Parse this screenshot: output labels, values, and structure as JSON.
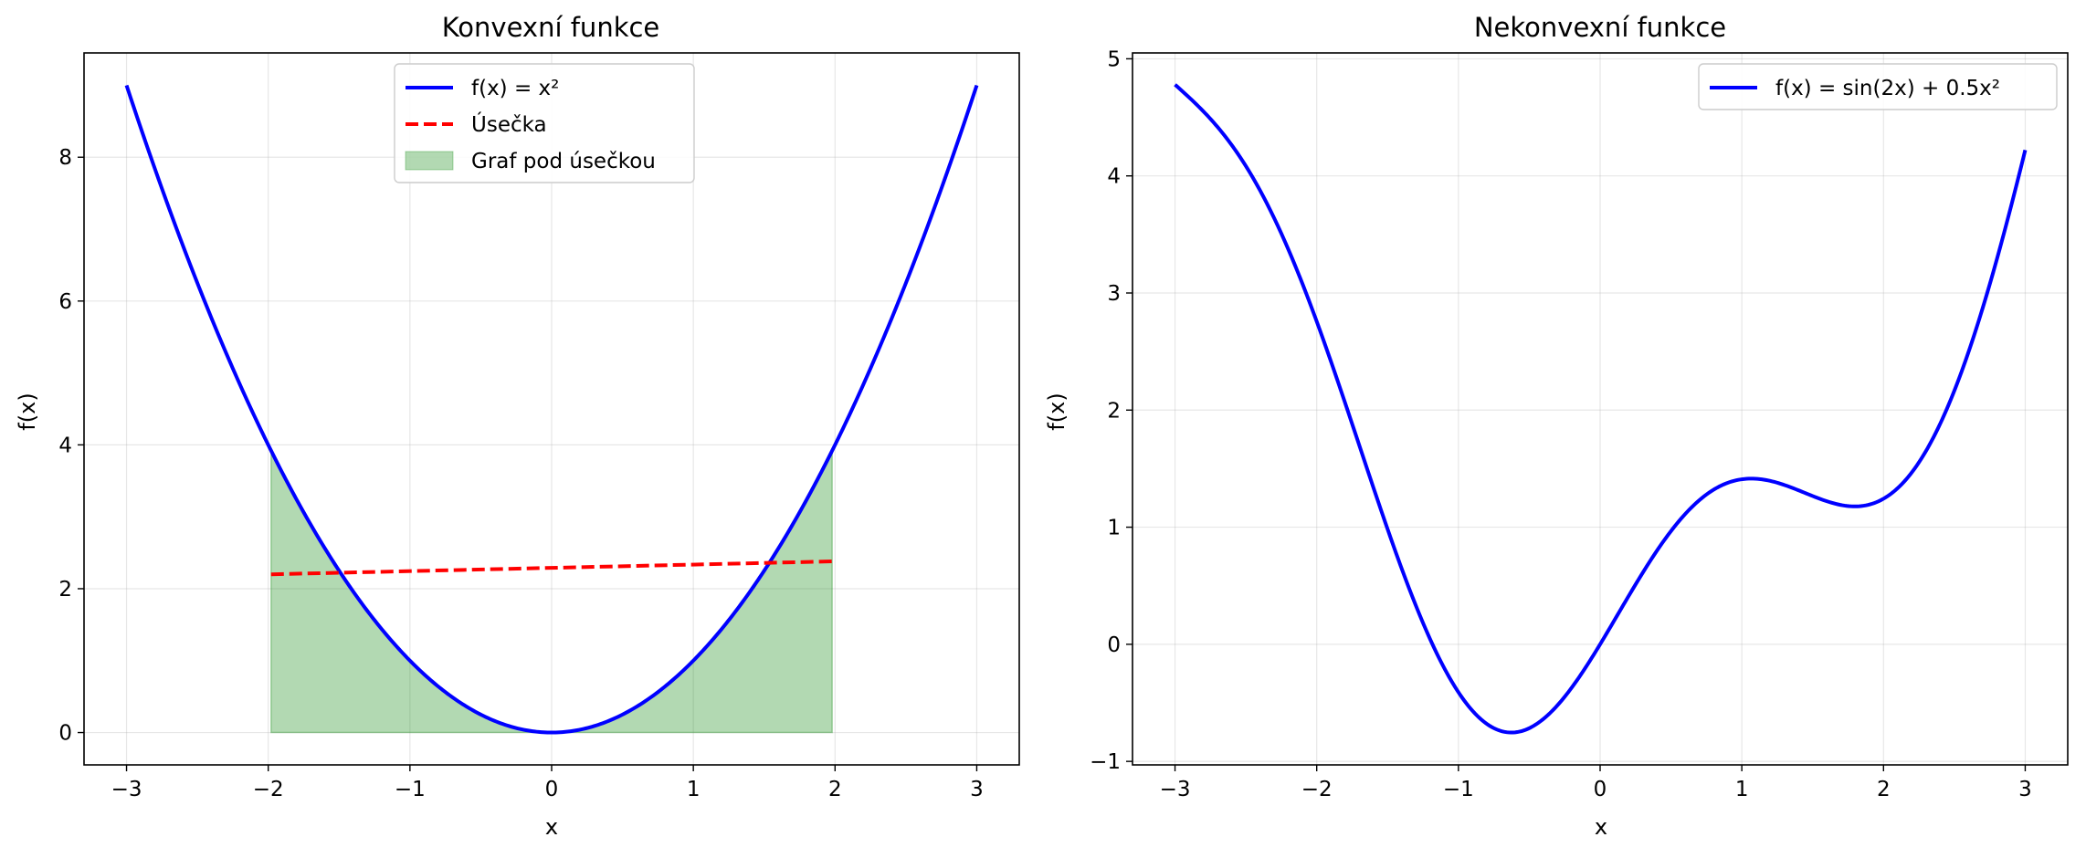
{
  "chart_data": [
    {
      "type": "line",
      "title": "Konvexní funkce",
      "xlabel": "x",
      "ylabel": "f(x)",
      "xlim": [
        -3.3,
        3.3
      ],
      "ylim": [
        -0.45,
        9.45
      ],
      "xticks": [
        -3,
        -2,
        -1,
        0,
        1,
        2,
        3
      ],
      "xtick_labels": [
        "−3",
        "−2",
        "−1",
        "0",
        "1",
        "2",
        "3"
      ],
      "yticks": [
        0,
        2,
        4,
        6,
        8
      ],
      "ytick_labels": [
        "0",
        "2",
        "4",
        "6",
        "8"
      ],
      "grid": true,
      "legend_position": "top-center",
      "series": [
        {
          "name": "f(x) = x²",
          "kind": "line",
          "color": "#0000ff",
          "style": "solid",
          "function": "x^2",
          "x_range": [
            -3,
            3
          ]
        },
        {
          "name": "Úsečka",
          "kind": "line",
          "color": "#ff0000",
          "style": "dashed",
          "x": [
            -1.98,
            1.98
          ],
          "y": [
            2.2,
            2.38
          ]
        },
        {
          "name": "Graf pod úsečkou",
          "kind": "area",
          "color": "#008000",
          "opacity": 0.3,
          "x_range": [
            -1.98,
            1.98
          ],
          "lower": 0,
          "upper_function": "x^2"
        }
      ]
    },
    {
      "type": "line",
      "title": "Nekonvexní funkce",
      "xlabel": "x",
      "ylabel": "f(x)",
      "xlim": [
        -3.3,
        3.3
      ],
      "ylim": [
        -1.03,
        5.05
      ],
      "xticks": [
        -3,
        -2,
        -1,
        0,
        1,
        2,
        3
      ],
      "xtick_labels": [
        "−3",
        "−2",
        "−1",
        "0",
        "1",
        "2",
        "3"
      ],
      "yticks": [
        -1,
        0,
        1,
        2,
        3,
        4,
        5
      ],
      "ytick_labels": [
        "−1",
        "0",
        "1",
        "2",
        "3",
        "4",
        "5"
      ],
      "grid": true,
      "legend_position": "top-right",
      "series": [
        {
          "name": "f(x) = sin(2x) + 0.5x²",
          "kind": "line",
          "color": "#0000ff",
          "style": "solid",
          "function": "sin(2x) + 0.5x^2",
          "x_range": [
            -3,
            3
          ]
        }
      ]
    }
  ]
}
